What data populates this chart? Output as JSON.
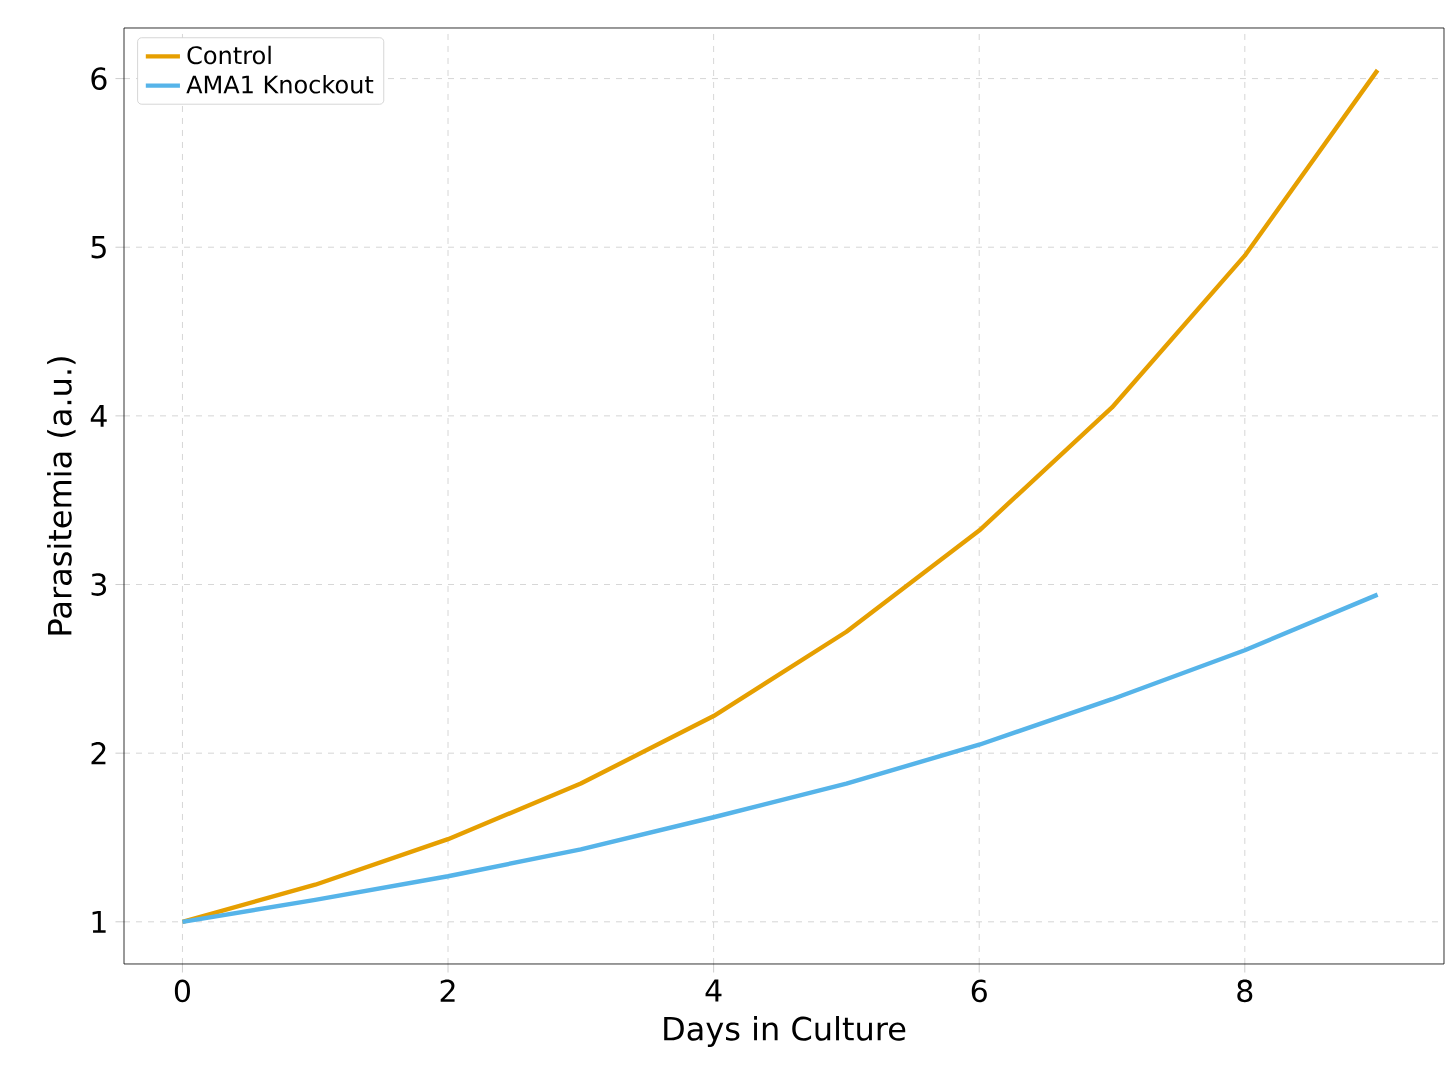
{
  "chart_data": {
    "type": "line",
    "xlabel": "Days in Culture",
    "ylabel": "Parasitemia (a.u.)",
    "x": [
      0,
      1,
      2,
      3,
      4,
      5,
      6,
      7,
      8,
      9
    ],
    "series": [
      {
        "name": "Control",
        "color": "#e69f00",
        "values": [
          1.0,
          1.22,
          1.49,
          1.82,
          2.22,
          2.72,
          3.32,
          4.05,
          4.95,
          6.05
        ]
      },
      {
        "name": "AMA1 Knockout",
        "color": "#56b4e9",
        "values": [
          1.0,
          1.13,
          1.27,
          1.43,
          1.62,
          1.82,
          2.05,
          2.32,
          2.61,
          2.94
        ]
      }
    ],
    "xlim": [
      -0.44,
      9.5
    ],
    "ylim": [
      0.75,
      6.3
    ],
    "xticks": [
      0,
      2,
      4,
      6,
      8
    ],
    "yticks": [
      1,
      2,
      3,
      4,
      5,
      6
    ],
    "grid": true,
    "legend": "top left",
    "marker": "none",
    "line_style": "solid"
  }
}
